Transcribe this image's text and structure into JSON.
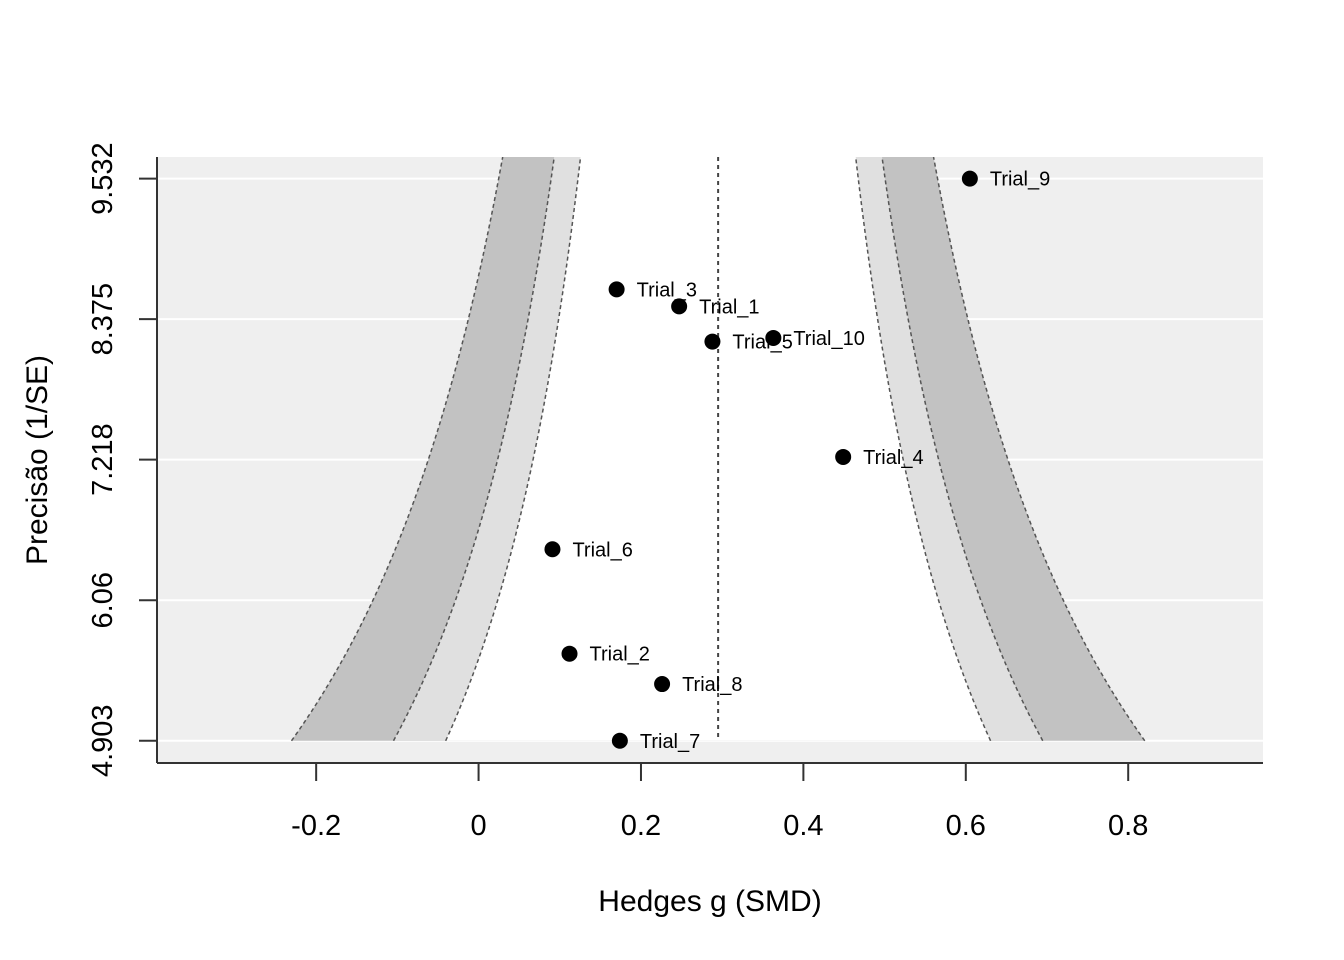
{
  "chart_data": {
    "type": "scatter",
    "subtype": "contour-enhanced funnel plot",
    "title": "",
    "xlabel": "Hedges g (SMD)",
    "ylabel": "Precisão (1/SE)",
    "xlim": [
      -0.396,
      0.966
    ],
    "ylim": [
      4.72,
      9.71
    ],
    "x_ticks": [
      -0.2,
      0,
      0.2,
      0.4,
      0.6,
      0.8
    ],
    "x_tick_labels": [
      "-0.2",
      "0",
      "0.2",
      "0.4",
      "0.6",
      "0.8"
    ],
    "y_ticks": [
      4.903,
      6.06,
      7.218,
      8.375,
      9.532
    ],
    "y_tick_labels": [
      "4.903",
      "6.06",
      "7.218",
      "8.375",
      "9.532"
    ],
    "grid": true,
    "background_color": "#efefef",
    "reference_line_x": 0.295,
    "contour_regions": [
      {
        "level": "inner",
        "z": 1.645,
        "fill": "#ffffff"
      },
      {
        "level": "middle",
        "z": 1.96,
        "fill": "#e0e0e0"
      },
      {
        "level": "outer",
        "z": 2.576,
        "fill": "#c2c2c2"
      }
    ],
    "series": [
      {
        "points": [
          {
            "label": "Trial_9",
            "x": 0.605,
            "y": 9.532
          },
          {
            "label": "Trial_3",
            "x": 0.17,
            "y": 8.62
          },
          {
            "label": "Trial_1",
            "x": 0.247,
            "y": 8.48
          },
          {
            "label": "Trial_5",
            "x": 0.288,
            "y": 8.19
          },
          {
            "label": "Trial_10",
            "x": 0.363,
            "y": 8.22
          },
          {
            "label": "Trial_4",
            "x": 0.449,
            "y": 7.24
          },
          {
            "label": "Trial_6",
            "x": 0.091,
            "y": 6.48
          },
          {
            "label": "Trial_2",
            "x": 0.112,
            "y": 5.62
          },
          {
            "label": "Trial_8",
            "x": 0.226,
            "y": 5.37
          },
          {
            "label": "Trial_7",
            "x": 0.174,
            "y": 4.903
          }
        ]
      }
    ]
  }
}
